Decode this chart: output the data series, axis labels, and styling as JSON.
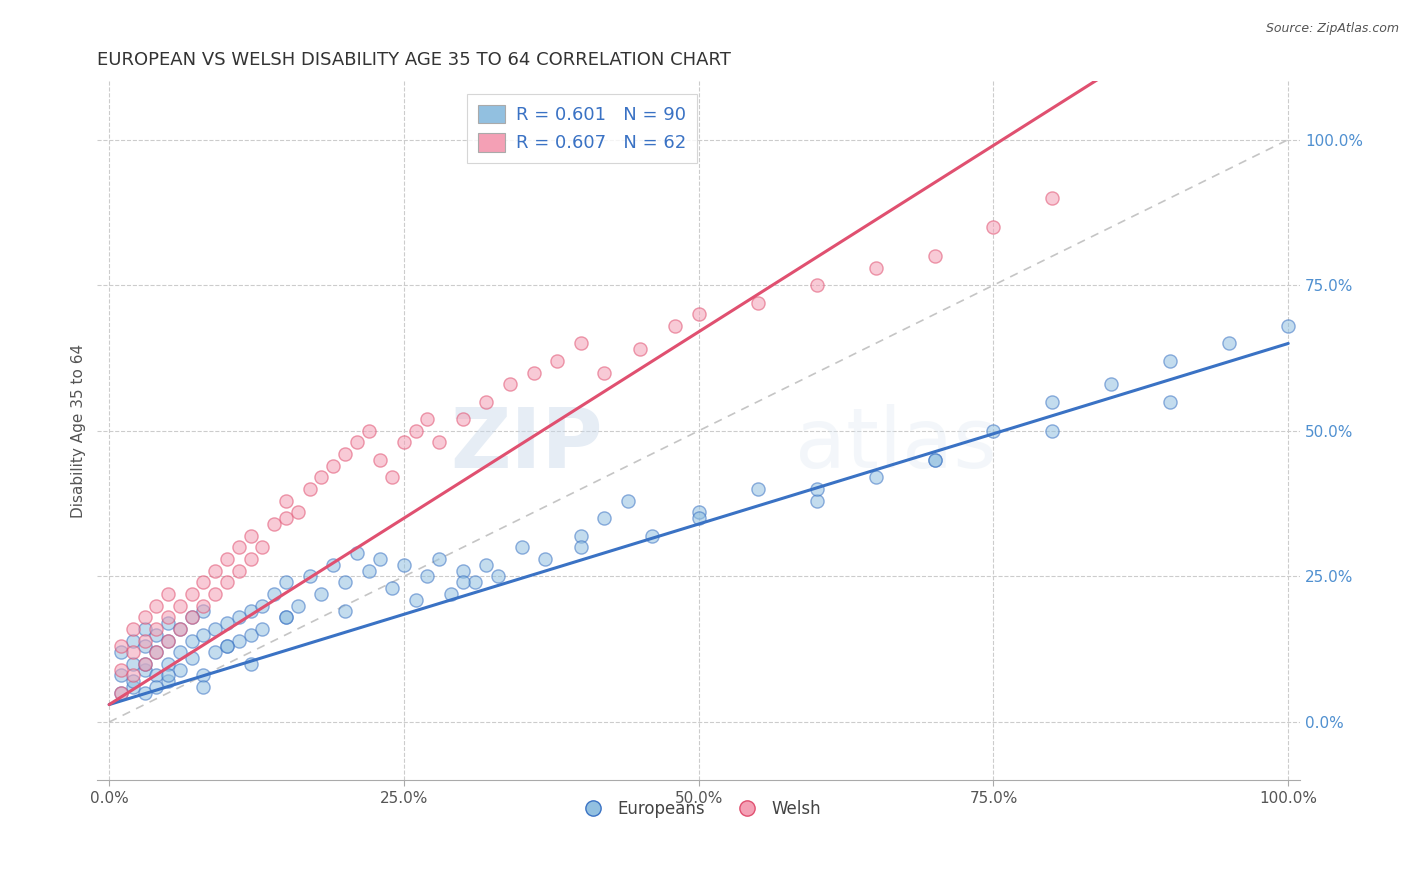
{
  "title": "EUROPEAN VS WELSH DISABILITY AGE 35 TO 64 CORRELATION CHART",
  "source": "Source: ZipAtlas.com",
  "ylabel": "Disability Age 35 to 64",
  "R_blue": 0.601,
  "N_blue": 90,
  "R_pink": 0.607,
  "N_pink": 62,
  "blue_color": "#92c0e0",
  "pink_color": "#f4a0b5",
  "blue_line_color": "#3a72c4",
  "pink_line_color": "#e05070",
  "blue_label_color": "#3a72c4",
  "tick_label_color": "#5090d0",
  "title_color": "#333333",
  "source_color": "#555555",
  "watermark_color": "#d8e8f4",
  "blue_slope": 0.62,
  "blue_intercept": 3.0,
  "pink_slope": 1.28,
  "pink_intercept": 3.0,
  "blue_x": [
    1,
    1,
    1,
    2,
    2,
    2,
    2,
    3,
    3,
    3,
    3,
    3,
    4,
    4,
    4,
    4,
    5,
    5,
    5,
    5,
    6,
    6,
    6,
    7,
    7,
    7,
    8,
    8,
    8,
    9,
    9,
    10,
    10,
    11,
    11,
    12,
    12,
    13,
    13,
    14,
    15,
    15,
    16,
    17,
    18,
    19,
    20,
    21,
    22,
    23,
    24,
    25,
    26,
    27,
    28,
    29,
    30,
    31,
    32,
    33,
    35,
    37,
    40,
    42,
    44,
    46,
    50,
    55,
    60,
    65,
    70,
    75,
    80,
    85,
    90,
    95,
    100,
    20,
    30,
    40,
    50,
    60,
    70,
    80,
    90,
    5,
    10,
    15,
    8,
    12
  ],
  "blue_y": [
    5,
    8,
    12,
    6,
    10,
    14,
    7,
    5,
    9,
    13,
    16,
    10,
    8,
    12,
    15,
    6,
    10,
    14,
    17,
    7,
    12,
    16,
    9,
    14,
    18,
    11,
    15,
    19,
    8,
    16,
    12,
    17,
    13,
    18,
    14,
    19,
    15,
    20,
    16,
    22,
    18,
    24,
    20,
    25,
    22,
    27,
    24,
    29,
    26,
    28,
    23,
    27,
    21,
    25,
    28,
    22,
    26,
    24,
    27,
    25,
    30,
    28,
    32,
    35,
    38,
    32,
    36,
    40,
    38,
    42,
    45,
    50,
    55,
    58,
    62,
    65,
    68,
    19,
    24,
    30,
    35,
    40,
    45,
    50,
    55,
    8,
    13,
    18,
    6,
    10
  ],
  "pink_x": [
    1,
    1,
    1,
    2,
    2,
    2,
    3,
    3,
    3,
    4,
    4,
    4,
    5,
    5,
    5,
    6,
    6,
    7,
    7,
    8,
    8,
    9,
    9,
    10,
    10,
    11,
    11,
    12,
    12,
    13,
    14,
    15,
    15,
    16,
    17,
    18,
    19,
    20,
    21,
    22,
    23,
    24,
    25,
    26,
    27,
    28,
    30,
    32,
    34,
    36,
    38,
    40,
    42,
    45,
    48,
    50,
    55,
    60,
    65,
    70,
    75,
    80
  ],
  "pink_y": [
    5,
    9,
    13,
    8,
    12,
    16,
    10,
    14,
    18,
    12,
    16,
    20,
    14,
    18,
    22,
    16,
    20,
    18,
    22,
    20,
    24,
    22,
    26,
    24,
    28,
    26,
    30,
    28,
    32,
    30,
    34,
    35,
    38,
    36,
    40,
    42,
    44,
    46,
    48,
    50,
    45,
    42,
    48,
    50,
    52,
    48,
    52,
    55,
    58,
    60,
    62,
    65,
    60,
    64,
    68,
    70,
    72,
    75,
    78,
    80,
    85,
    90
  ]
}
